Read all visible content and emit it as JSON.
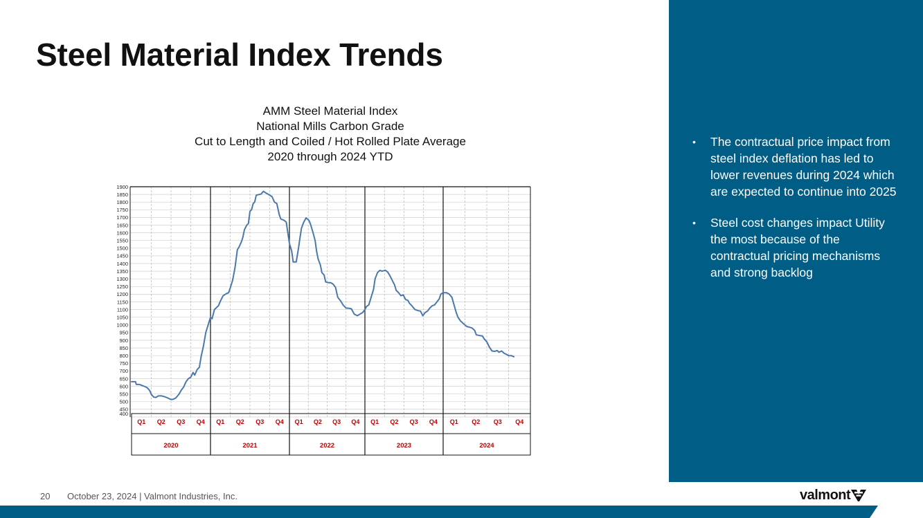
{
  "slide": {
    "title": "Steel Material Index Trends",
    "page_number": "20",
    "footer_text": "October 23, 2024  | Valmont Industries, Inc.",
    "logo_text": "valmont",
    "accent_color": "#005d85",
    "line_color": "#4a78ad",
    "label_color": "#c00000"
  },
  "chart_title_lines": [
    "AMM Steel Material Index",
    "National Mills Carbon Grade",
    "Cut to Length and Coiled / Hot Rolled Plate Average",
    "2020 through 2024 YTD"
  ],
  "bullets": [
    "The contractual price impact from steel index deflation has led to lower revenues during 2024 which are expected to continue into 2025",
    "Steel cost changes impact Utility the most because of the contractual pricing mechanisms and strong backlog"
  ],
  "chart_data": {
    "type": "line",
    "title": "AMM Steel Material Index — National Mills Carbon Grade — Cut to Length and Coiled / Hot Rolled Plate Average — 2020 through 2024 YTD",
    "xlabel": "",
    "ylabel": "",
    "ylim": [
      400,
      1900
    ],
    "y_ticks": [
      400,
      450,
      500,
      550,
      600,
      650,
      700,
      750,
      800,
      850,
      900,
      950,
      1000,
      1050,
      1100,
      1150,
      1200,
      1250,
      1300,
      1350,
      1400,
      1450,
      1500,
      1550,
      1600,
      1650,
      1700,
      1750,
      1800,
      1850,
      1900
    ],
    "x_unit": "year",
    "xlim": [
      2020.0,
      2025.0
    ],
    "years": [
      "2020",
      "2021",
      "2022",
      "2023",
      "2024"
    ],
    "quarters": [
      "Q1",
      "Q2",
      "Q3",
      "Q4"
    ],
    "series": [
      {
        "name": "AMM Steel Material Index",
        "points": [
          [
            2020.0,
            630
          ],
          [
            2020.05,
            630
          ],
          [
            2020.06,
            612
          ],
          [
            2020.1,
            612
          ],
          [
            2020.14,
            604
          ],
          [
            2020.17,
            598
          ],
          [
            2020.2,
            590
          ],
          [
            2020.23,
            572
          ],
          [
            2020.25,
            548
          ],
          [
            2020.28,
            530
          ],
          [
            2020.31,
            528
          ],
          [
            2020.34,
            538
          ],
          [
            2020.38,
            538
          ],
          [
            2020.42,
            532
          ],
          [
            2020.45,
            526
          ],
          [
            2020.48,
            519
          ],
          [
            2020.5,
            514
          ],
          [
            2020.53,
            516
          ],
          [
            2020.56,
            524
          ],
          [
            2020.6,
            548
          ],
          [
            2020.63,
            575
          ],
          [
            2020.66,
            595
          ],
          [
            2020.69,
            630
          ],
          [
            2020.72,
            650
          ],
          [
            2020.75,
            660
          ],
          [
            2020.78,
            690
          ],
          [
            2020.8,
            673
          ],
          [
            2020.83,
            708
          ],
          [
            2020.86,
            725
          ],
          [
            2020.88,
            790
          ],
          [
            2020.91,
            860
          ],
          [
            2020.94,
            950
          ],
          [
            2020.97,
            1000
          ],
          [
            2021.0,
            1050
          ],
          [
            2021.02,
            1040
          ],
          [
            2021.05,
            1100
          ],
          [
            2021.08,
            1115
          ],
          [
            2021.1,
            1125
          ],
          [
            2021.13,
            1160
          ],
          [
            2021.16,
            1190
          ],
          [
            2021.2,
            1203
          ],
          [
            2021.23,
            1210
          ],
          [
            2021.25,
            1240
          ],
          [
            2021.28,
            1290
          ],
          [
            2021.31,
            1370
          ],
          [
            2021.34,
            1490
          ],
          [
            2021.36,
            1505
          ],
          [
            2021.39,
            1540
          ],
          [
            2021.41,
            1570
          ],
          [
            2021.43,
            1620
          ],
          [
            2021.46,
            1650
          ],
          [
            2021.48,
            1660
          ],
          [
            2021.5,
            1740
          ],
          [
            2021.52,
            1750
          ],
          [
            2021.54,
            1790
          ],
          [
            2021.56,
            1800
          ],
          [
            2021.58,
            1845
          ],
          [
            2021.62,
            1850
          ],
          [
            2021.64,
            1852
          ],
          [
            2021.67,
            1870
          ],
          [
            2021.7,
            1860
          ],
          [
            2021.74,
            1848
          ],
          [
            2021.78,
            1835
          ],
          [
            2021.81,
            1800
          ],
          [
            2021.84,
            1790
          ],
          [
            2021.87,
            1720
          ],
          [
            2021.89,
            1690
          ],
          [
            2021.93,
            1682
          ],
          [
            2021.96,
            1670
          ],
          [
            2021.98,
            1600
          ],
          [
            2022.0,
            1530
          ],
          [
            2022.03,
            1480
          ],
          [
            2022.05,
            1410
          ],
          [
            2022.09,
            1410
          ],
          [
            2022.12,
            1500
          ],
          [
            2022.14,
            1570
          ],
          [
            2022.16,
            1630
          ],
          [
            2022.19,
            1670
          ],
          [
            2022.22,
            1697
          ],
          [
            2022.26,
            1680
          ],
          [
            2022.28,
            1655
          ],
          [
            2022.31,
            1605
          ],
          [
            2022.34,
            1550
          ],
          [
            2022.36,
            1480
          ],
          [
            2022.38,
            1430
          ],
          [
            2022.41,
            1390
          ],
          [
            2022.43,
            1340
          ],
          [
            2022.46,
            1325
          ],
          [
            2022.48,
            1280
          ],
          [
            2022.52,
            1275
          ],
          [
            2022.55,
            1275
          ],
          [
            2022.58,
            1265
          ],
          [
            2022.61,
            1245
          ],
          [
            2022.64,
            1180
          ],
          [
            2022.68,
            1155
          ],
          [
            2022.71,
            1130
          ],
          [
            2022.75,
            1110
          ],
          [
            2022.79,
            1108
          ],
          [
            2022.82,
            1105
          ],
          [
            2022.86,
            1070
          ],
          [
            2022.9,
            1060
          ],
          [
            2022.94,
            1072
          ],
          [
            2022.97,
            1080
          ],
          [
            2023.0,
            1100
          ],
          [
            2023.02,
            1120
          ],
          [
            2023.05,
            1130
          ],
          [
            2023.08,
            1180
          ],
          [
            2023.11,
            1230
          ],
          [
            2023.13,
            1300
          ],
          [
            2023.16,
            1340
          ],
          [
            2023.19,
            1355
          ],
          [
            2023.22,
            1350
          ],
          [
            2023.26,
            1356
          ],
          [
            2023.29,
            1345
          ],
          [
            2023.32,
            1320
          ],
          [
            2023.35,
            1290
          ],
          [
            2023.38,
            1260
          ],
          [
            2023.4,
            1225
          ],
          [
            2023.43,
            1210
          ],
          [
            2023.46,
            1190
          ],
          [
            2023.49,
            1195
          ],
          [
            2023.52,
            1165
          ],
          [
            2023.55,
            1160
          ],
          [
            2023.57,
            1140
          ],
          [
            2023.6,
            1125
          ],
          [
            2023.64,
            1100
          ],
          [
            2023.68,
            1093
          ],
          [
            2023.71,
            1090
          ],
          [
            2023.74,
            1060
          ],
          [
            2023.77,
            1080
          ],
          [
            2023.8,
            1090
          ],
          [
            2023.83,
            1110
          ],
          [
            2023.86,
            1125
          ],
          [
            2023.89,
            1130
          ],
          [
            2023.92,
            1150
          ],
          [
            2023.95,
            1170
          ],
          [
            2023.97,
            1200
          ],
          [
            2024.0,
            1210
          ],
          [
            2024.04,
            1210
          ],
          [
            2024.07,
            1200
          ],
          [
            2024.1,
            1180
          ],
          [
            2024.12,
            1140
          ],
          [
            2024.15,
            1080
          ],
          [
            2024.17,
            1050
          ],
          [
            2024.2,
            1025
          ],
          [
            2024.23,
            1010
          ],
          [
            2024.27,
            990
          ],
          [
            2024.3,
            985
          ],
          [
            2024.33,
            980
          ],
          [
            2024.36,
            965
          ],
          [
            2024.38,
            935
          ],
          [
            2024.42,
            930
          ],
          [
            2024.45,
            928
          ],
          [
            2024.47,
            910
          ],
          [
            2024.5,
            890
          ],
          [
            2024.53,
            855
          ],
          [
            2024.56,
            830
          ],
          [
            2024.59,
            828
          ],
          [
            2024.62,
            833
          ],
          [
            2024.64,
            822
          ],
          [
            2024.67,
            830
          ],
          [
            2024.7,
            815
          ],
          [
            2024.72,
            810
          ],
          [
            2024.75,
            800
          ],
          [
            2024.78,
            800
          ],
          [
            2024.81,
            793
          ]
        ]
      }
    ]
  }
}
